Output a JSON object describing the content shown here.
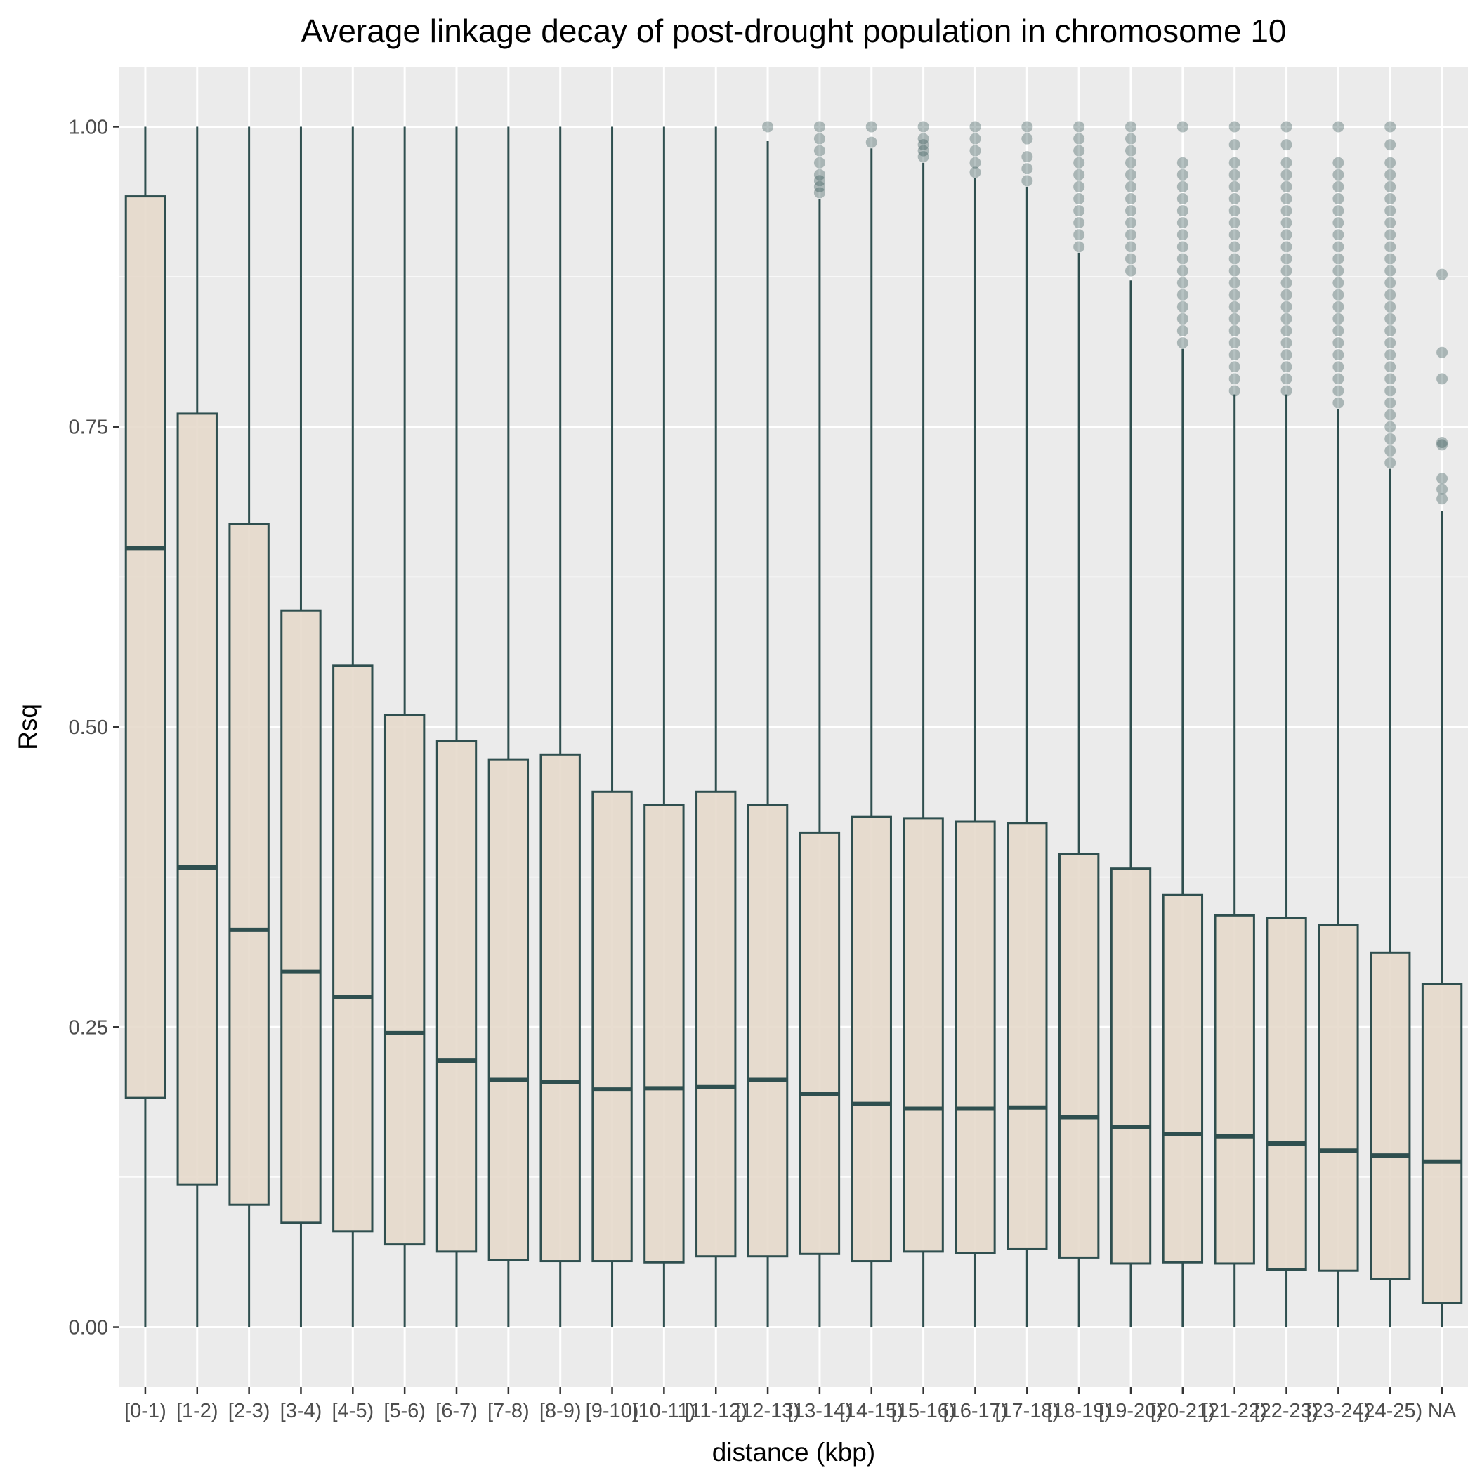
{
  "chart_data": {
    "type": "box",
    "title": "Average linkage decay of post-drought population in chromosome  10",
    "xlabel": "distance (kbp)",
    "ylabel": "Rsq",
    "ylim": [
      -0.05,
      1.05
    ],
    "yticks": [
      0.0,
      0.25,
      0.5,
      0.75,
      1.0
    ],
    "ytick_labels": [
      "0.00",
      "0.25",
      "0.50",
      "0.75",
      "1.00"
    ],
    "grid": true,
    "categories": [
      "[0-1)",
      "[1-2)",
      "[2-3)",
      "[3-4)",
      "[4-5)",
      "[5-6)",
      "[6-7)",
      "[7-8)",
      "[8-9)",
      "[9-10)",
      "[10-11)",
      "[11-12)",
      "[12-13)",
      "[13-14)",
      "[14-15)",
      "[15-16)",
      "[16-17)",
      "[17-18)",
      "[18-19)",
      "[19-20)",
      "[20-21)",
      "[21-22)",
      "[22-23)",
      "[23-24)",
      "[24-25)",
      "NA"
    ],
    "boxes": [
      {
        "whisker_low": 0.0,
        "q1": 0.191,
        "median": 0.649,
        "q3": 0.942,
        "whisker_high": 1.0,
        "outliers": []
      },
      {
        "whisker_low": 0.0,
        "q1": 0.119,
        "median": 0.383,
        "q3": 0.761,
        "whisker_high": 1.0,
        "outliers": []
      },
      {
        "whisker_low": 0.0,
        "q1": 0.102,
        "median": 0.331,
        "q3": 0.669,
        "whisker_high": 1.0,
        "outliers": []
      },
      {
        "whisker_low": 0.0,
        "q1": 0.087,
        "median": 0.296,
        "q3": 0.597,
        "whisker_high": 1.0,
        "outliers": []
      },
      {
        "whisker_low": 0.0,
        "q1": 0.08,
        "median": 0.275,
        "q3": 0.551,
        "whisker_high": 1.0,
        "outliers": []
      },
      {
        "whisker_low": 0.0,
        "q1": 0.069,
        "median": 0.245,
        "q3": 0.51,
        "whisker_high": 1.0,
        "outliers": []
      },
      {
        "whisker_low": 0.0,
        "q1": 0.063,
        "median": 0.222,
        "q3": 0.488,
        "whisker_high": 1.0,
        "outliers": []
      },
      {
        "whisker_low": 0.0,
        "q1": 0.056,
        "median": 0.206,
        "q3": 0.473,
        "whisker_high": 1.0,
        "outliers": []
      },
      {
        "whisker_low": 0.0,
        "q1": 0.055,
        "median": 0.204,
        "q3": 0.477,
        "whisker_high": 1.0,
        "outliers": []
      },
      {
        "whisker_low": 0.0,
        "q1": 0.055,
        "median": 0.198,
        "q3": 0.446,
        "whisker_high": 1.0,
        "outliers": []
      },
      {
        "whisker_low": 0.0,
        "q1": 0.054,
        "median": 0.199,
        "q3": 0.435,
        "whisker_high": 1.0,
        "outliers": []
      },
      {
        "whisker_low": 0.0,
        "q1": 0.059,
        "median": 0.2,
        "q3": 0.446,
        "whisker_high": 1.0,
        "outliers": []
      },
      {
        "whisker_low": 0.0,
        "q1": 0.059,
        "median": 0.206,
        "q3": 0.435,
        "whisker_high": 0.988,
        "outliers": [
          1.0
        ]
      },
      {
        "whisker_low": 0.0,
        "q1": 0.061,
        "median": 0.194,
        "q3": 0.412,
        "whisker_high": 0.94,
        "outliers": [
          1.0,
          0.99,
          0.98,
          0.97,
          0.96,
          0.955,
          0.95,
          0.945
        ]
      },
      {
        "whisker_low": 0.0,
        "q1": 0.055,
        "median": 0.186,
        "q3": 0.425,
        "whisker_high": 0.982,
        "outliers": [
          1.0,
          0.987
        ]
      },
      {
        "whisker_low": 0.0,
        "q1": 0.063,
        "median": 0.182,
        "q3": 0.424,
        "whisker_high": 0.97,
        "outliers": [
          1.0,
          0.99,
          0.985,
          0.98,
          0.975
        ]
      },
      {
        "whisker_low": 0.0,
        "q1": 0.062,
        "median": 0.182,
        "q3": 0.421,
        "whisker_high": 0.957,
        "outliers": [
          1.0,
          0.99,
          0.98,
          0.97,
          0.962
        ]
      },
      {
        "whisker_low": 0.0,
        "q1": 0.065,
        "median": 0.183,
        "q3": 0.42,
        "whisker_high": 0.95,
        "outliers": [
          1.0,
          0.99,
          0.975,
          0.965,
          0.955
        ]
      },
      {
        "whisker_low": 0.0,
        "q1": 0.058,
        "median": 0.175,
        "q3": 0.394,
        "whisker_high": 0.895,
        "outliers": [
          1.0,
          0.99,
          0.98,
          0.97,
          0.96,
          0.95,
          0.94,
          0.93,
          0.92,
          0.91,
          0.9
        ]
      },
      {
        "whisker_low": 0.0,
        "q1": 0.053,
        "median": 0.167,
        "q3": 0.382,
        "whisker_high": 0.872,
        "outliers": [
          1.0,
          0.99,
          0.98,
          0.97,
          0.96,
          0.95,
          0.94,
          0.93,
          0.92,
          0.91,
          0.9,
          0.89,
          0.88
        ]
      },
      {
        "whisker_low": 0.0,
        "q1": 0.054,
        "median": 0.161,
        "q3": 0.36,
        "whisker_high": 0.815,
        "outliers": [
          1.0,
          0.97,
          0.96,
          0.95,
          0.94,
          0.93,
          0.92,
          0.91,
          0.9,
          0.89,
          0.88,
          0.87,
          0.86,
          0.85,
          0.84,
          0.83,
          0.82
        ]
      },
      {
        "whisker_low": 0.0,
        "q1": 0.053,
        "median": 0.159,
        "q3": 0.343,
        "whisker_high": 0.777,
        "outliers": [
          1.0,
          0.985,
          0.97,
          0.96,
          0.95,
          0.94,
          0.93,
          0.92,
          0.91,
          0.9,
          0.89,
          0.88,
          0.87,
          0.86,
          0.85,
          0.84,
          0.83,
          0.82,
          0.81,
          0.8,
          0.79,
          0.78
        ]
      },
      {
        "whisker_low": 0.0,
        "q1": 0.048,
        "median": 0.153,
        "q3": 0.341,
        "whisker_high": 0.777,
        "outliers": [
          1.0,
          0.985,
          0.97,
          0.96,
          0.95,
          0.94,
          0.93,
          0.92,
          0.91,
          0.9,
          0.89,
          0.88,
          0.87,
          0.86,
          0.85,
          0.84,
          0.83,
          0.82,
          0.81,
          0.8,
          0.79,
          0.78
        ]
      },
      {
        "whisker_low": 0.0,
        "q1": 0.047,
        "median": 0.147,
        "q3": 0.335,
        "whisker_high": 0.765,
        "outliers": [
          1.0,
          0.97,
          0.96,
          0.95,
          0.94,
          0.93,
          0.92,
          0.91,
          0.9,
          0.89,
          0.88,
          0.87,
          0.86,
          0.85,
          0.84,
          0.83,
          0.82,
          0.81,
          0.8,
          0.79,
          0.78,
          0.77
        ]
      },
      {
        "whisker_low": 0.0,
        "q1": 0.04,
        "median": 0.143,
        "q3": 0.312,
        "whisker_high": 0.715,
        "outliers": [
          1.0,
          0.985,
          0.97,
          0.96,
          0.95,
          0.94,
          0.93,
          0.92,
          0.91,
          0.9,
          0.89,
          0.88,
          0.87,
          0.86,
          0.85,
          0.84,
          0.83,
          0.82,
          0.81,
          0.8,
          0.79,
          0.78,
          0.77,
          0.76,
          0.75,
          0.74,
          0.73,
          0.72
        ]
      },
      {
        "whisker_low": 0.0,
        "q1": 0.02,
        "median": 0.138,
        "q3": 0.286,
        "whisker_high": 0.68,
        "outliers": [
          0.877,
          0.812,
          0.79,
          0.737,
          0.735,
          0.707,
          0.698,
          0.69
        ]
      }
    ]
  },
  "colors": {
    "panel_background": "#EBEBEB",
    "gridline": "#FFFFFF",
    "box_fill": "#E5D8C9",
    "box_outline": "#2F4F4F",
    "tick_label": "#4D4D4D",
    "tick_mark": "#333333",
    "title": "#000000"
  }
}
